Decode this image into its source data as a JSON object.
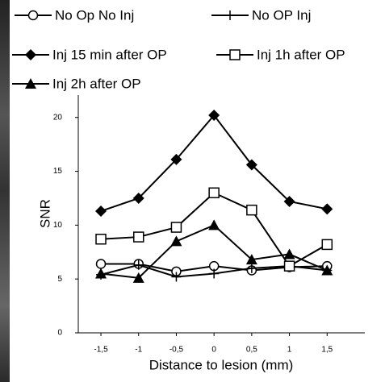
{
  "chart_data": {
    "type": "line",
    "x_label": "Distance to lesion (mm)",
    "y_label": "SNR",
    "x": [
      -1.5,
      -1,
      -0.5,
      0,
      0.5,
      1,
      1.5
    ],
    "xlim": [
      -1.8,
      2.0
    ],
    "xticks": [
      {
        "value": -1.5,
        "label": "-1,5"
      },
      -1,
      {
        "value": -0.5,
        "label": "-0,5"
      },
      0,
      {
        "value": 0.5,
        "label": "0,5"
      },
      1,
      {
        "value": 1.5,
        "label": "1,5"
      }
    ],
    "ylim": [
      0,
      22
    ],
    "yticks": [
      0,
      5,
      10,
      15,
      20
    ],
    "grid": false,
    "series": [
      {
        "name": "No Op No Inj",
        "color": "#000000",
        "marker": "open-circle",
        "values": [
          6.4,
          6.4,
          5.7,
          6.2,
          5.8,
          6.1,
          6.2
        ]
      },
      {
        "name": "No OP Inj",
        "color": "#000000",
        "marker": "plus",
        "values": [
          5.4,
          6.3,
          5.2,
          5.5,
          6.0,
          6.2,
          5.8
        ]
      },
      {
        "name": "Inj 15 min after OP",
        "color": "#000000",
        "marker": "filled-diamond",
        "values": [
          11.3,
          12.5,
          16.1,
          20.2,
          15.6,
          12.2,
          11.5
        ]
      },
      {
        "name": "Inj 1h after OP",
        "color": "#000000",
        "marker": "open-square",
        "values": [
          8.7,
          8.9,
          9.8,
          13.0,
          11.4,
          6.2,
          8.2
        ]
      },
      {
        "name": "Inj 2h after OP",
        "color": "#000000",
        "marker": "filled-triangle",
        "values": [
          5.5,
          5.1,
          8.5,
          10.0,
          6.8,
          7.3,
          5.8
        ]
      }
    ]
  }
}
